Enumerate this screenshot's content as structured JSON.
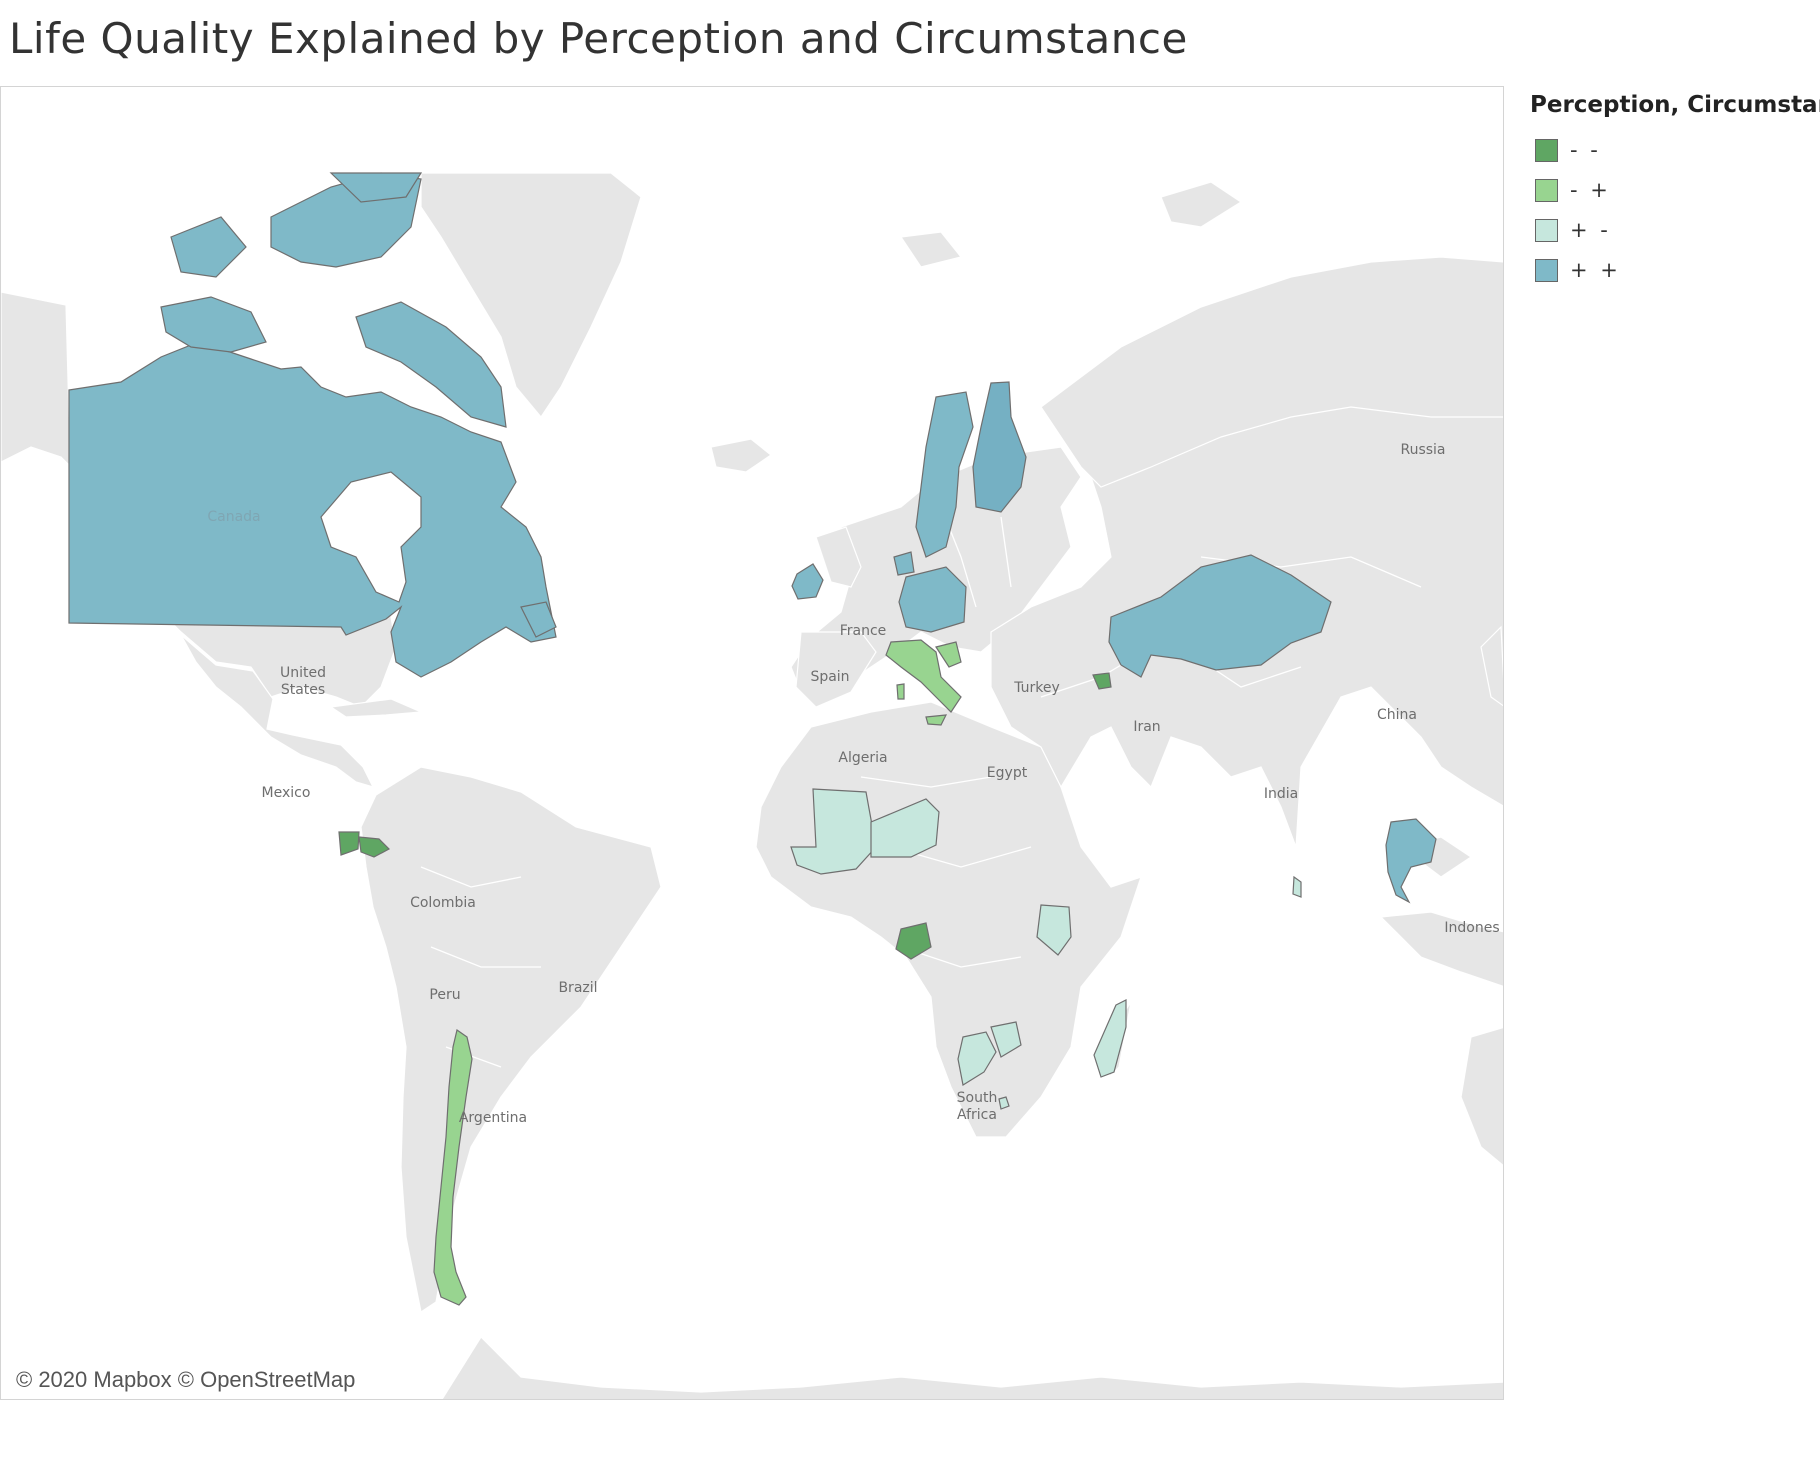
{
  "title": "Life Quality Explained by Perception and Circumstance",
  "attribution": "© 2020 Mapbox © OpenStreetMap",
  "legend": {
    "title": "Perception, Circumstance",
    "items": [
      {
        "label": "- -",
        "color": "#5fa663"
      },
      {
        "label": "- +",
        "color": "#98d490"
      },
      {
        "label": "+ -",
        "color": "#c6e7dd"
      },
      {
        "label": "+ +",
        "color": "#7fb9c8"
      }
    ]
  },
  "colors": {
    "land": "#e6e6e6",
    "ocean": "#ffffff",
    "border": "#ffffff",
    "outline": "#6f6f6f"
  },
  "places": {
    "canada": "Canada",
    "united_states": "United\nStates",
    "mexico": "Mexico",
    "colombia": "Colombia",
    "peru": "Peru",
    "brazil": "Brazil",
    "argentina": "Argentina",
    "france": "France",
    "spain": "Spain",
    "algeria": "Algeria",
    "egypt": "Egypt",
    "turkey": "Turkey",
    "iran": "Iran",
    "india": "India",
    "china": "China",
    "russia": "Russia",
    "indonesia": "Indones",
    "south_africa": "South\nAfrica"
  },
  "highlighted_countries": [
    {
      "name": "Canada",
      "category": "+ +"
    },
    {
      "name": "Sweden",
      "category": "+ +"
    },
    {
      "name": "Finland",
      "category": "+ +"
    },
    {
      "name": "Ireland",
      "category": "+ +"
    },
    {
      "name": "Germany",
      "category": "+ +"
    },
    {
      "name": "Netherlands",
      "category": "+ +"
    },
    {
      "name": "Kazakhstan",
      "category": "+ +"
    },
    {
      "name": "Thailand",
      "category": "+ +"
    },
    {
      "name": "Italy",
      "category": "- +"
    },
    {
      "name": "Croatia",
      "category": "- +"
    },
    {
      "name": "Chile",
      "category": "- +"
    },
    {
      "name": "Armenia",
      "category": "- -"
    },
    {
      "name": "Guatemala",
      "category": "- -"
    },
    {
      "name": "Honduras",
      "category": "- -"
    },
    {
      "name": "Gabon",
      "category": "- -"
    },
    {
      "name": "Mali",
      "category": "+ -"
    },
    {
      "name": "Niger",
      "category": "+ -"
    },
    {
      "name": "Kenya",
      "category": "+ -"
    },
    {
      "name": "Botswana",
      "category": "+ -"
    },
    {
      "name": "Zimbabwe",
      "category": "+ -"
    },
    {
      "name": "Madagascar",
      "category": "+ -"
    },
    {
      "name": "Sri Lanka",
      "category": "+ -"
    },
    {
      "name": "Eswatini",
      "category": "+ -"
    }
  ]
}
